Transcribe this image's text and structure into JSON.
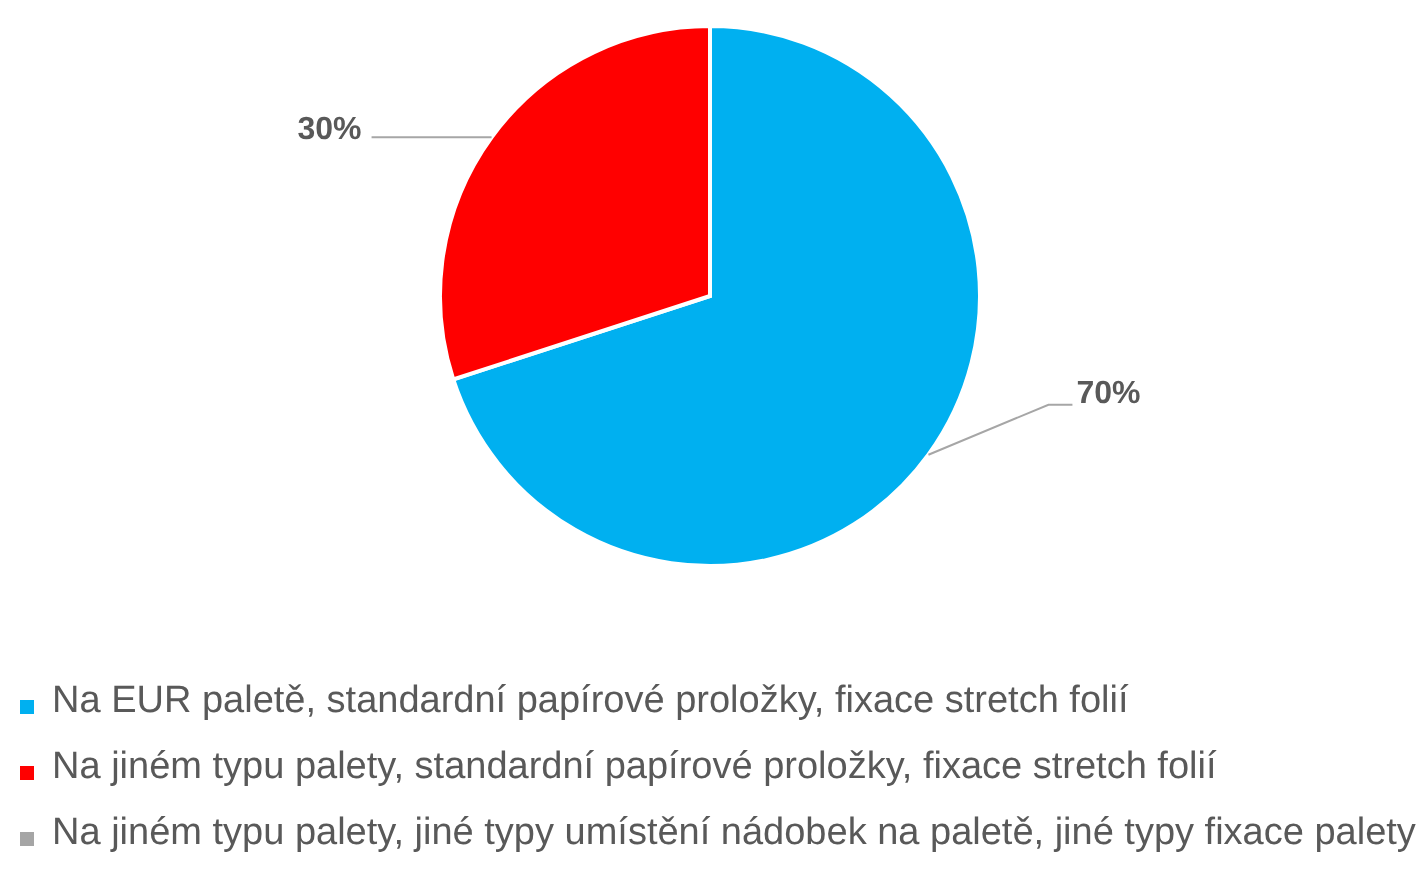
{
  "chart_data": {
    "type": "pie",
    "categories": [
      "Na EUR paletě, standardní papírové proložky, fixace stretch folií",
      "Na jiném typu palety, standardní papírové proložky, fixace stretch folií",
      "Na jiném typu palety, jiné typy umístění nádobek na paletě, jiné typy fixace palety"
    ],
    "values": [
      70,
      30,
      0
    ],
    "colors": [
      "#00b0f0",
      "#ff0000",
      "#a5a5a5"
    ],
    "value_labels": [
      "70%",
      "30%",
      null
    ],
    "legend": "bottom"
  }
}
